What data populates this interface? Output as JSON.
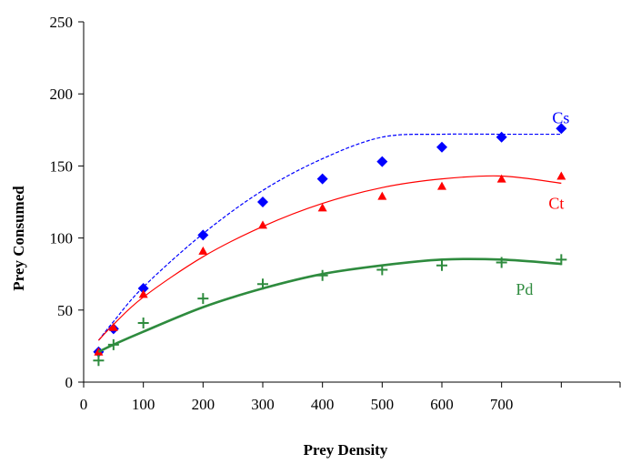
{
  "chart_data": {
    "type": "scatter",
    "title": "",
    "xlabel": "Prey Density",
    "ylabel": "Prey Consumed",
    "xlim": [
      0,
      900
    ],
    "ylim": [
      0,
      250
    ],
    "x_ticks": [
      0,
      100,
      200,
      300,
      400,
      500,
      600,
      700
    ],
    "y_ticks": [
      0,
      50,
      100,
      150,
      200,
      250
    ],
    "grid": false,
    "legend": "inline labels at line ends",
    "series": [
      {
        "name": "Cs",
        "color": "#0000ff",
        "marker": "diamond",
        "line": "dashed",
        "x": [
          25,
          50,
          100,
          200,
          300,
          400,
          500,
          600,
          700,
          800
        ],
        "y": [
          21,
          37,
          65,
          102,
          125,
          141,
          153,
          163,
          170,
          176
        ],
        "fit": [
          29,
          42,
          66,
          103,
          133,
          155,
          170,
          172,
          172,
          172
        ],
        "fit_x": [
          25,
          50,
          100,
          200,
          300,
          400,
          500,
          600,
          700,
          800
        ]
      },
      {
        "name": "Ct",
        "color": "#ff0000",
        "marker": "triangle",
        "line": "solid-thin",
        "x": [
          25,
          50,
          100,
          200,
          300,
          400,
          500,
          600,
          700,
          800
        ],
        "y": [
          21,
          38,
          61,
          91,
          109,
          121,
          129,
          136,
          141,
          143
        ],
        "fit": [
          29,
          40,
          59,
          87,
          108,
          124,
          135,
          141,
          143,
          138
        ],
        "fit_x": [
          25,
          50,
          100,
          200,
          300,
          400,
          500,
          600,
          700,
          800
        ]
      },
      {
        "name": "Pd",
        "color": "#2e8b3e",
        "marker": "plus",
        "line": "solid-thick",
        "x": [
          25,
          50,
          100,
          200,
          300,
          400,
          500,
          600,
          700,
          800
        ],
        "y": [
          15,
          26,
          41,
          58,
          68,
          74,
          78,
          81,
          83,
          85
        ],
        "fit": [
          21,
          26,
          35,
          52,
          65,
          75,
          81,
          85,
          85,
          82
        ],
        "fit_x": [
          25,
          50,
          100,
          200,
          300,
          400,
          500,
          600,
          700,
          800
        ]
      }
    ]
  }
}
